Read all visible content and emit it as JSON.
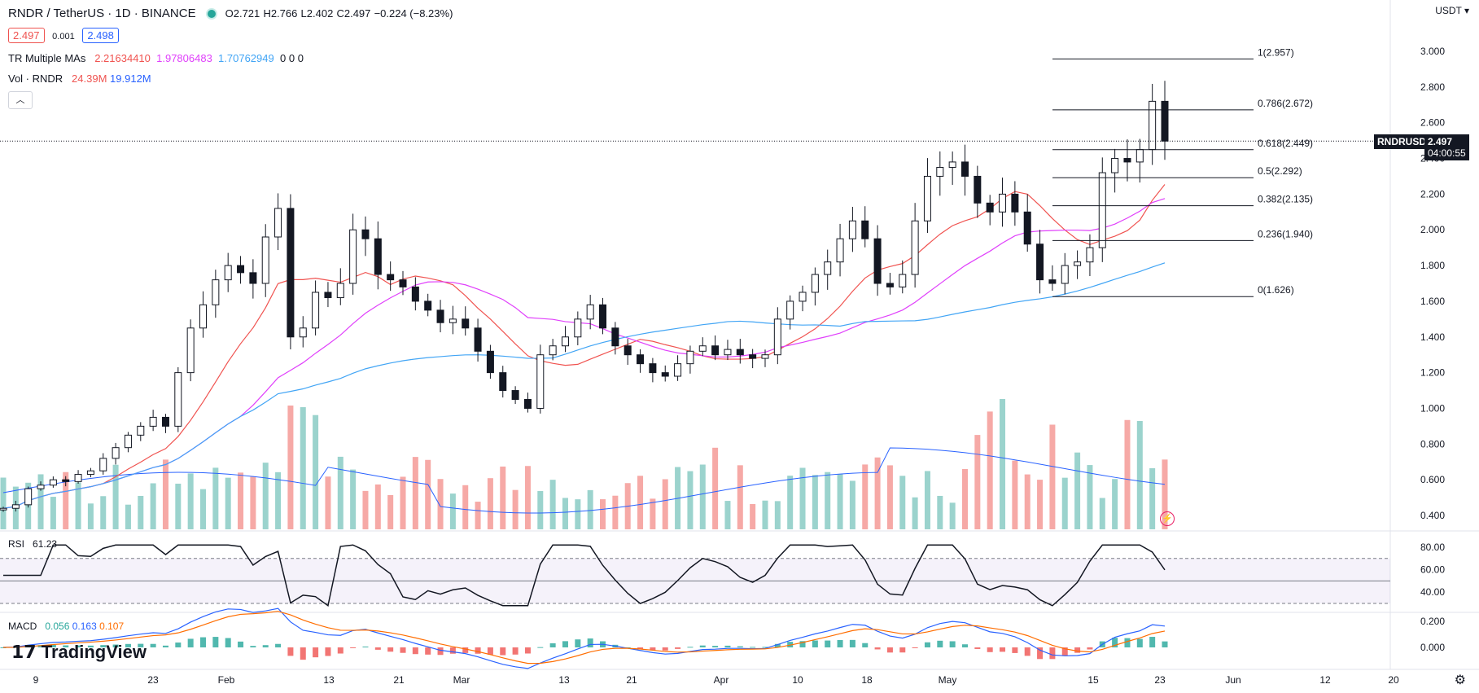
{
  "header": {
    "symbol": "RNDR / TetherUS · 1D · BINANCE",
    "open": "O2.721",
    "high": "H2.766",
    "low": "L2.402",
    "close": "C2.497",
    "change": "−0.224 (−8.23%)",
    "bid": "2.497",
    "spread": "0.001",
    "ask": "2.498",
    "ma_label": "TR Multiple MAs",
    "ma_values": [
      "2.21634410",
      "1.97806483",
      "1.70762949",
      "0",
      "0",
      "0"
    ],
    "vol_label": "Vol · RNDR",
    "vol_values": [
      "24.39M",
      "19.912M"
    ],
    "collapse_icon": "chevron-up-icon"
  },
  "currency": "USDT",
  "price_tag": {
    "symbol": "RNDRUSDT",
    "price": "2.497",
    "countdown": "04:00:55"
  },
  "rsi": {
    "label": "RSI",
    "value": "61.23"
  },
  "macd": {
    "label": "MACD",
    "values": [
      "0.056",
      "0.163",
      "0.107"
    ]
  },
  "branding": {
    "logo": "TradingView"
  },
  "colors": {
    "up": "#26a69a",
    "down": "#ef5350",
    "ma1": "#f05350",
    "ma2": "#e040fb",
    "ma3": "#42a5f5",
    "rsi": "#131722",
    "macd": "#2962ff",
    "signal": "#ff6d00"
  },
  "chart_data": {
    "type": "candlestick",
    "price_axis": [
      3.0,
      2.8,
      2.6,
      2.4,
      2.2,
      2.0,
      1.8,
      1.6,
      1.4,
      1.2,
      1.0,
      0.8,
      0.6,
      0.4
    ],
    "price_axis_labels": [
      "3.000",
      "2.800",
      "2.600",
      "2.400",
      "2.200",
      "2.000",
      "1.800",
      "1.600",
      "1.400",
      "1.200",
      "1.000",
      "0.800",
      "0.600",
      "0.400"
    ],
    "x_labels": [
      "9",
      "23",
      "Feb",
      "13",
      "21",
      "Mar",
      "13",
      "21",
      "Apr",
      "10",
      "18",
      "May",
      "15",
      "23",
      "Jun",
      "12",
      "20"
    ],
    "fib_levels": [
      {
        "label": "1(2.957)",
        "value": 2.957
      },
      {
        "label": "0.786(2.672)",
        "value": 2.672
      },
      {
        "label": "0.618(2.449)",
        "value": 2.449
      },
      {
        "label": "0.5(2.292)",
        "value": 2.292
      },
      {
        "label": "0.382(2.135)",
        "value": 2.135
      },
      {
        "label": "0.236(1.940)",
        "value": 1.94
      },
      {
        "label": "0(1.626)",
        "value": 1.626
      }
    ],
    "close_approx": [
      0.44,
      0.46,
      0.55,
      0.57,
      0.6,
      0.59,
      0.63,
      0.65,
      0.72,
      0.78,
      0.85,
      0.9,
      0.95,
      0.9,
      1.2,
      1.45,
      1.58,
      1.72,
      1.8,
      1.76,
      1.7,
      1.96,
      2.12,
      1.4,
      1.45,
      1.65,
      1.62,
      1.7,
      2.0,
      1.95,
      1.75,
      1.72,
      1.68,
      1.6,
      1.55,
      1.48,
      1.5,
      1.45,
      1.32,
      1.2,
      1.1,
      1.05,
      1.0,
      1.3,
      1.35,
      1.4,
      1.5,
      1.58,
      1.45,
      1.35,
      1.3,
      1.25,
      1.2,
      1.18,
      1.25,
      1.32,
      1.35,
      1.3,
      1.33,
      1.3,
      1.28,
      1.3,
      1.5,
      1.6,
      1.65,
      1.75,
      1.82,
      1.95,
      2.05,
      1.95,
      1.7,
      1.68,
      1.75,
      2.05,
      2.3,
      2.35,
      2.38,
      2.3,
      2.15,
      2.1,
      2.2,
      2.1,
      1.92,
      1.72,
      1.7,
      1.8,
      1.82,
      1.9,
      2.32,
      2.4,
      2.38,
      2.45,
      2.72,
      2.497
    ],
    "ma_series": [
      {
        "name": "MA1",
        "last": 2.216
      },
      {
        "name": "MA2",
        "last": 1.978
      },
      {
        "name": "MA3",
        "last": 1.708
      }
    ],
    "rsi_axis": [
      80.0,
      60.0,
      40.0
    ],
    "rsi_axis_labels": [
      "80.00",
      "60.00",
      "40.00"
    ],
    "macd_axis": [
      0.2,
      0.0
    ],
    "macd_axis_labels": [
      "0.200",
      "0.000"
    ]
  }
}
